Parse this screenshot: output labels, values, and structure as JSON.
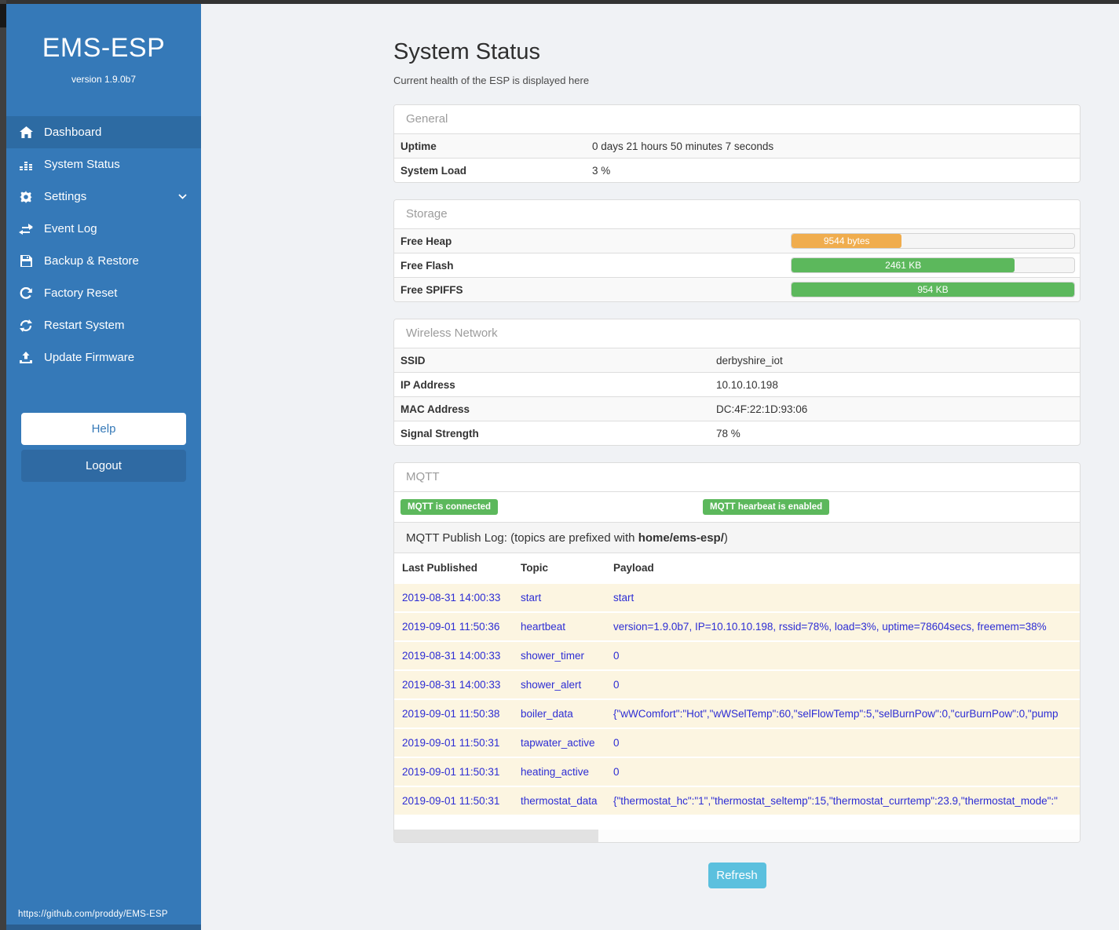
{
  "sidebar": {
    "title": "EMS-ESP",
    "version": "version 1.9.0b7",
    "items": [
      {
        "label": "Dashboard",
        "icon": "home-icon",
        "active": true,
        "chevron": false
      },
      {
        "label": "System Status",
        "icon": "levels-icon",
        "active": false,
        "chevron": false
      },
      {
        "label": "Settings",
        "icon": "gear-icon",
        "active": false,
        "chevron": true
      },
      {
        "label": "Event Log",
        "icon": "exchange-icon",
        "active": false,
        "chevron": false
      },
      {
        "label": "Backup & Restore",
        "icon": "save-icon",
        "active": false,
        "chevron": false
      },
      {
        "label": "Factory Reset",
        "icon": "rotate-icon",
        "active": false,
        "chevron": false
      },
      {
        "label": "Restart System",
        "icon": "refresh-icon",
        "active": false,
        "chevron": false
      },
      {
        "label": "Update Firmware",
        "icon": "upload-icon",
        "active": false,
        "chevron": false
      }
    ],
    "help_label": "Help",
    "logout_label": "Logout",
    "footer_url": "https://github.com/proddy/EMS-ESP"
  },
  "page": {
    "title": "System Status",
    "subtitle": "Current health of the ESP is displayed here"
  },
  "panels": {
    "general": {
      "title": "General",
      "rows": [
        {
          "label": "Uptime",
          "value": "0 days 21 hours 50 minutes 7 seconds"
        },
        {
          "label": "System Load",
          "value": "3 %"
        }
      ]
    },
    "storage": {
      "title": "Storage",
      "rows": [
        {
          "label": "Free Heap",
          "value": "9544 bytes",
          "percent": 39,
          "color": "#f0ad4e"
        },
        {
          "label": "Free Flash",
          "value": "2461 KB",
          "percent": 79,
          "color": "#5cb85c"
        },
        {
          "label": "Free SPIFFS",
          "value": "954 KB",
          "percent": 100,
          "color": "#5cb85c"
        }
      ]
    },
    "wireless": {
      "title": "Wireless Network",
      "rows": [
        {
          "label": "SSID",
          "value": "derbyshire_iot"
        },
        {
          "label": "IP Address",
          "value": "10.10.10.198"
        },
        {
          "label": "MAC Address",
          "value": "DC:4F:22:1D:93:06"
        },
        {
          "label": "Signal Strength",
          "value": "78 %"
        }
      ]
    },
    "mqtt": {
      "title": "MQTT",
      "badges": [
        "MQTT is connected",
        "MQTT hearbeat is enabled"
      ],
      "log_title_prefix": "MQTT Publish Log: (topics are prefixed with ",
      "log_title_bold": "home/ems-esp/",
      "log_title_suffix": ")",
      "columns": [
        "Last Published",
        "Topic",
        "Payload"
      ],
      "rows": [
        {
          "published": "2019-08-31 14:00:33",
          "topic": "start",
          "payload": "start"
        },
        {
          "published": "2019-09-01 11:50:36",
          "topic": "heartbeat",
          "payload": "version=1.9.0b7, IP=10.10.10.198, rssid=78%, load=3%, uptime=78604secs, freemem=38%"
        },
        {
          "published": "2019-08-31 14:00:33",
          "topic": "shower_timer",
          "payload": "0"
        },
        {
          "published": "2019-08-31 14:00:33",
          "topic": "shower_alert",
          "payload": "0"
        },
        {
          "published": "2019-09-01 11:50:38",
          "topic": "boiler_data",
          "payload": "{\"wWComfort\":\"Hot\",\"wWSelTemp\":60,\"selFlowTemp\":5,\"selBurnPow\":0,\"curBurnPow\":0,\"pump"
        },
        {
          "published": "2019-09-01 11:50:31",
          "topic": "tapwater_active",
          "payload": "0"
        },
        {
          "published": "2019-09-01 11:50:31",
          "topic": "heating_active",
          "payload": "0"
        },
        {
          "published": "2019-09-01 11:50:31",
          "topic": "thermostat_data",
          "payload": "{\"thermostat_hc\":\"1\",\"thermostat_seltemp\":15,\"thermostat_currtemp\":23.9,\"thermostat_mode\":\""
        }
      ]
    }
  },
  "refresh_label": "Refresh",
  "colors": {
    "sidebar": "#3579b8",
    "sidebar_active": "#2d6ba3",
    "badge_green": "#5cb85c",
    "bar_orange": "#f0ad4e",
    "bar_green": "#5cb85c",
    "log_row_bg": "#fcf5e1",
    "log_text_blue": "#2d2dd4",
    "refresh_blue": "#5bc0de"
  }
}
